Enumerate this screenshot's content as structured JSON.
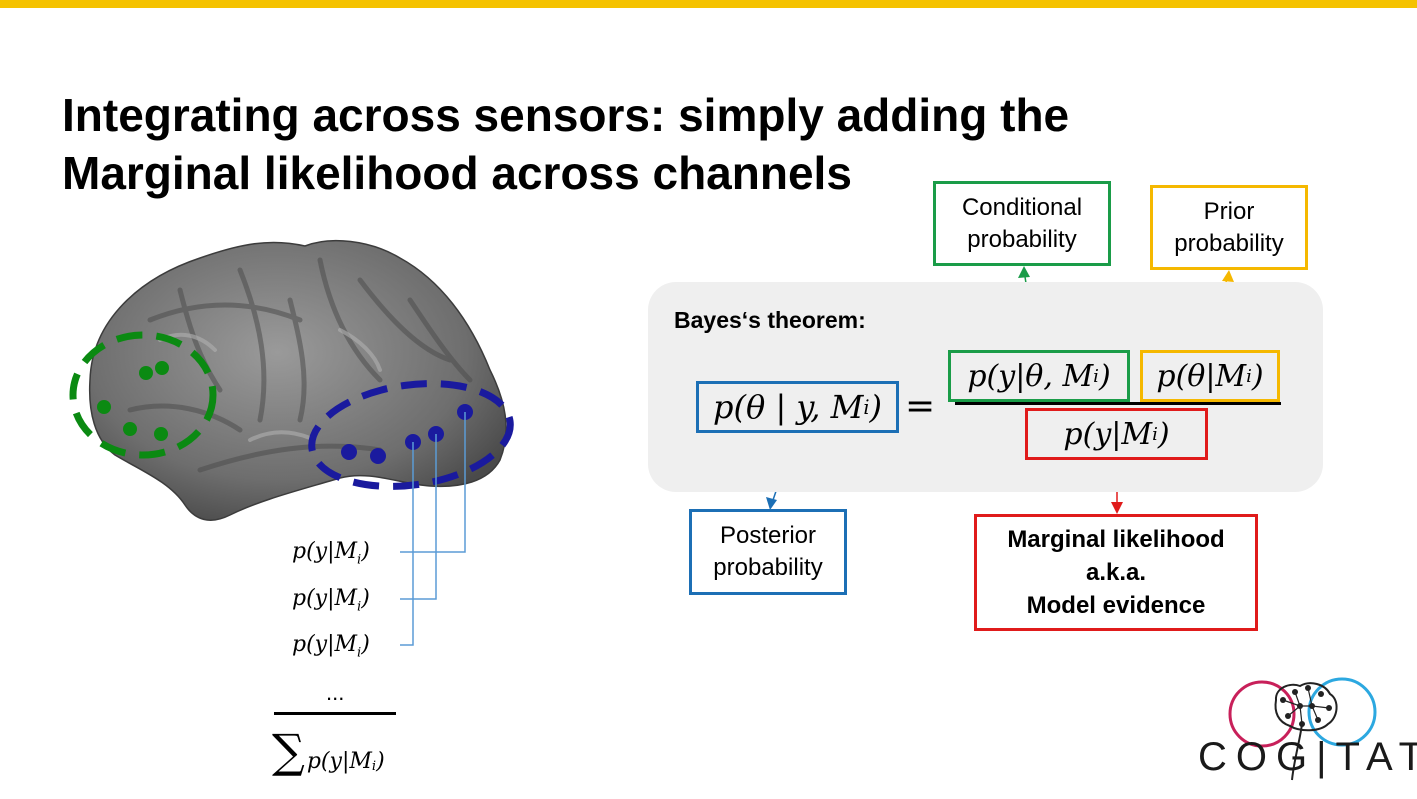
{
  "slide": {
    "title_line1": "Integrating across sensors: simply adding the",
    "title_line2": "Marginal likelihood across channels",
    "panel_title": "Bayes‘s theorem:"
  },
  "formula": {
    "lhs": "p(θ | y, M",
    "numerator_conditional": "p(y|θ, M",
    "numerator_prior": "p(θ|M",
    "denominator": "p(y|M",
    "subscript": "i",
    "close": ")",
    "equals": "="
  },
  "labels": {
    "conditional": [
      "Conditional",
      "probability"
    ],
    "prior": [
      "Prior",
      "probability"
    ],
    "posterior": [
      "Posterior",
      "probability"
    ],
    "marginal": [
      "Marginal likelihood",
      "a.k.a.",
      "Model evidence"
    ]
  },
  "sensors": {
    "item_text": "p(y|M",
    "subscript": "i",
    "close": ")",
    "ellipsis": "...",
    "sum_symbol": "∑"
  },
  "logo": {
    "text": "COG|TATE"
  },
  "colors": {
    "accent_bar": "#f5c200",
    "green": "#1a9c48",
    "orange": "#f5b800",
    "blue": "#1c6fb5",
    "red": "#e01b1b",
    "sensor_green": "#0b8a12",
    "sensor_blue": "#1a1a9e",
    "logo_pink": "#c8205a",
    "logo_cyan": "#2ca8e0"
  }
}
